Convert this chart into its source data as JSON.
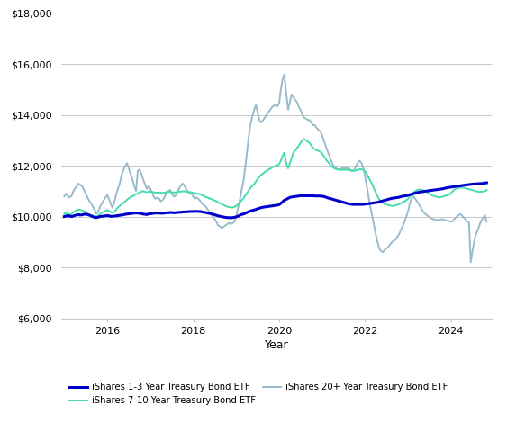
{
  "title": "",
  "xlabel": "Year",
  "ylabel": "",
  "background_color": "#ffffff",
  "grid_color": "#c8c8c8",
  "shy_color": "#0000cc",
  "ief_color": "#44ddaa",
  "tlt_color": "#99bbcc",
  "shy_label": "iShares 1-3 Year Treasury Bond ETF",
  "ief_label": "iShares 7-10 Year Treasury Bond ETF",
  "tlt_label": "iShares 20+ Year Treasury Bond ETF",
  "ylim": [
    6000,
    18000
  ],
  "yticks": [
    6000,
    8000,
    10000,
    12000,
    14000,
    16000,
    18000
  ],
  "xticks": [
    2016,
    2018,
    2020,
    2022,
    2024
  ],
  "xlim": [
    2014.92,
    2024.95
  ],
  "shy_lw": 2.2,
  "ief_lw": 1.4,
  "tlt_lw": 1.4,
  "dates": [
    2015.0,
    2015.04,
    2015.08,
    2015.12,
    2015.17,
    2015.21,
    2015.25,
    2015.29,
    2015.33,
    2015.37,
    2015.42,
    2015.46,
    2015.5,
    2015.54,
    2015.58,
    2015.63,
    2015.67,
    2015.71,
    2015.75,
    2015.79,
    2015.83,
    2015.87,
    2015.92,
    2015.96,
    2016.0,
    2016.04,
    2016.08,
    2016.12,
    2016.17,
    2016.21,
    2016.25,
    2016.29,
    2016.33,
    2016.37,
    2016.42,
    2016.46,
    2016.5,
    2016.54,
    2016.58,
    2016.63,
    2016.67,
    2016.71,
    2016.75,
    2016.79,
    2016.83,
    2016.87,
    2016.92,
    2016.96,
    2017.0,
    2017.04,
    2017.08,
    2017.12,
    2017.17,
    2017.21,
    2017.25,
    2017.29,
    2017.33,
    2017.37,
    2017.42,
    2017.46,
    2017.5,
    2017.54,
    2017.58,
    2017.63,
    2017.67,
    2017.71,
    2017.75,
    2017.79,
    2017.83,
    2017.87,
    2017.92,
    2017.96,
    2018.0,
    2018.04,
    2018.08,
    2018.12,
    2018.17,
    2018.21,
    2018.25,
    2018.29,
    2018.33,
    2018.37,
    2018.42,
    2018.46,
    2018.5,
    2018.54,
    2018.58,
    2018.63,
    2018.67,
    2018.71,
    2018.75,
    2018.79,
    2018.83,
    2018.87,
    2018.92,
    2018.96,
    2019.0,
    2019.04,
    2019.08,
    2019.12,
    2019.17,
    2019.21,
    2019.25,
    2019.29,
    2019.33,
    2019.37,
    2019.42,
    2019.46,
    2019.5,
    2019.54,
    2019.58,
    2019.63,
    2019.67,
    2019.71,
    2019.75,
    2019.79,
    2019.83,
    2019.87,
    2019.92,
    2019.96,
    2020.0,
    2020.04,
    2020.08,
    2020.12,
    2020.17,
    2020.21,
    2020.25,
    2020.29,
    2020.33,
    2020.37,
    2020.42,
    2020.46,
    2020.5,
    2020.54,
    2020.58,
    2020.63,
    2020.67,
    2020.71,
    2020.75,
    2020.79,
    2020.83,
    2020.87,
    2020.92,
    2020.96,
    2021.0,
    2021.04,
    2021.08,
    2021.12,
    2021.17,
    2021.21,
    2021.25,
    2021.29,
    2021.33,
    2021.37,
    2021.42,
    2021.46,
    2021.5,
    2021.54,
    2021.58,
    2021.63,
    2021.67,
    2021.71,
    2021.75,
    2021.79,
    2021.83,
    2021.87,
    2021.92,
    2021.96,
    2022.0,
    2022.04,
    2022.08,
    2022.12,
    2022.17,
    2022.21,
    2022.25,
    2022.29,
    2022.33,
    2022.37,
    2022.42,
    2022.46,
    2022.5,
    2022.54,
    2022.58,
    2022.63,
    2022.67,
    2022.71,
    2022.75,
    2022.79,
    2022.83,
    2022.87,
    2022.92,
    2022.96,
    2023.0,
    2023.04,
    2023.08,
    2023.12,
    2023.17,
    2023.21,
    2023.25,
    2023.29,
    2023.33,
    2023.37,
    2023.42,
    2023.46,
    2023.5,
    2023.54,
    2023.58,
    2023.63,
    2023.67,
    2023.71,
    2023.75,
    2023.79,
    2023.83,
    2023.87,
    2023.92,
    2023.96,
    2024.0,
    2024.04,
    2024.08,
    2024.12,
    2024.17,
    2024.21,
    2024.25,
    2024.29,
    2024.33,
    2024.37,
    2024.42,
    2024.46,
    2024.5,
    2024.54,
    2024.58,
    2024.63,
    2024.67,
    2024.71,
    2024.75,
    2024.79,
    2024.83
  ],
  "shy": [
    10000,
    10020,
    10040,
    10020,
    10000,
    10020,
    10050,
    10060,
    10080,
    10060,
    10070,
    10090,
    10100,
    10080,
    10060,
    10020,
    9990,
    9970,
    9960,
    9980,
    10000,
    10010,
    10020,
    10030,
    10040,
    10030,
    10010,
    10010,
    10020,
    10030,
    10040,
    10050,
    10060,
    10070,
    10090,
    10100,
    10110,
    10120,
    10130,
    10140,
    10140,
    10140,
    10130,
    10120,
    10100,
    10090,
    10080,
    10100,
    10110,
    10120,
    10130,
    10140,
    10140,
    10140,
    10130,
    10130,
    10140,
    10150,
    10150,
    10160,
    10160,
    10150,
    10150,
    10160,
    10170,
    10170,
    10180,
    10180,
    10190,
    10190,
    10200,
    10200,
    10200,
    10200,
    10210,
    10200,
    10200,
    10180,
    10170,
    10160,
    10140,
    10130,
    10110,
    10090,
    10070,
    10050,
    10030,
    10010,
    9990,
    9980,
    9970,
    9960,
    9960,
    9950,
    9960,
    9970,
    9990,
    10010,
    10050,
    10080,
    10100,
    10130,
    10160,
    10190,
    10220,
    10240,
    10260,
    10280,
    10310,
    10330,
    10350,
    10370,
    10380,
    10390,
    10400,
    10410,
    10420,
    10430,
    10440,
    10450,
    10470,
    10520,
    10580,
    10640,
    10680,
    10720,
    10750,
    10770,
    10780,
    10790,
    10800,
    10810,
    10820,
    10820,
    10820,
    10820,
    10820,
    10820,
    10820,
    10820,
    10810,
    10810,
    10810,
    10810,
    10800,
    10790,
    10770,
    10740,
    10720,
    10700,
    10680,
    10660,
    10640,
    10620,
    10600,
    10580,
    10560,
    10540,
    10520,
    10500,
    10490,
    10480,
    10480,
    10480,
    10480,
    10480,
    10480,
    10480,
    10490,
    10500,
    10510,
    10520,
    10530,
    10540,
    10550,
    10560,
    10580,
    10600,
    10620,
    10640,
    10660,
    10680,
    10700,
    10720,
    10730,
    10740,
    10750,
    10760,
    10780,
    10800,
    10810,
    10820,
    10840,
    10860,
    10880,
    10900,
    10920,
    10940,
    10960,
    10970,
    10980,
    10990,
    11000,
    11010,
    11020,
    11030,
    11040,
    11050,
    11060,
    11070,
    11080,
    11090,
    11100,
    11120,
    11140,
    11150,
    11160,
    11170,
    11180,
    11190,
    11200,
    11210,
    11220,
    11230,
    11240,
    11250,
    11260,
    11270,
    11280,
    11280,
    11290,
    11290,
    11300,
    11300,
    11310,
    11320,
    11330
  ],
  "ief": [
    10100,
    10150,
    10120,
    10080,
    10100,
    10180,
    10200,
    10250,
    10280,
    10260,
    10240,
    10200,
    10180,
    10120,
    10080,
    10060,
    10040,
    10020,
    10000,
    10030,
    10100,
    10150,
    10200,
    10220,
    10260,
    10220,
    10180,
    10150,
    10200,
    10280,
    10360,
    10420,
    10480,
    10540,
    10600,
    10660,
    10720,
    10760,
    10800,
    10840,
    10880,
    10900,
    10950,
    10980,
    11000,
    10980,
    10960,
    10980,
    10980,
    10970,
    10960,
    10940,
    10940,
    10950,
    10940,
    10930,
    10940,
    10960,
    10970,
    10970,
    10960,
    10950,
    10950,
    10970,
    10980,
    10980,
    10990,
    11000,
    10980,
    10970,
    10960,
    10960,
    10940,
    10920,
    10910,
    10900,
    10870,
    10840,
    10800,
    10780,
    10750,
    10720,
    10690,
    10660,
    10630,
    10600,
    10560,
    10520,
    10490,
    10460,
    10420,
    10390,
    10380,
    10360,
    10360,
    10380,
    10420,
    10480,
    10540,
    10620,
    10720,
    10820,
    10920,
    11020,
    11120,
    11200,
    11280,
    11380,
    11480,
    11560,
    11640,
    11700,
    11760,
    11800,
    11840,
    11880,
    11920,
    11960,
    12000,
    12020,
    12060,
    12200,
    12380,
    12520,
    12060,
    11900,
    12100,
    12300,
    12500,
    12600,
    12700,
    12800,
    12900,
    13000,
    13050,
    13000,
    12950,
    12900,
    12800,
    12700,
    12650,
    12620,
    12580,
    12550,
    12480,
    12380,
    12280,
    12180,
    12080,
    12000,
    11940,
    11900,
    11870,
    11850,
    11840,
    11840,
    11840,
    11840,
    11840,
    11840,
    11820,
    11800,
    11800,
    11820,
    11840,
    11860,
    11860,
    11840,
    11780,
    11680,
    11560,
    11420,
    11260,
    11100,
    10940,
    10800,
    10680,
    10600,
    10540,
    10500,
    10480,
    10460,
    10440,
    10420,
    10420,
    10440,
    10460,
    10480,
    10520,
    10560,
    10600,
    10640,
    10700,
    10780,
    10860,
    10940,
    11000,
    11040,
    11060,
    11060,
    11040,
    11020,
    10980,
    10940,
    10900,
    10860,
    10820,
    10800,
    10780,
    10760,
    10760,
    10780,
    10800,
    10820,
    10840,
    10860,
    10920,
    11000,
    11060,
    11100,
    11120,
    11140,
    11140,
    11140,
    11120,
    11100,
    11080,
    11060,
    11040,
    11020,
    11000,
    10980,
    10980,
    10980,
    10980,
    11000,
    11050
  ],
  "tlt": [
    10800,
    10900,
    10820,
    10750,
    10820,
    11000,
    11100,
    11200,
    11300,
    11250,
    11180,
    11050,
    10900,
    10750,
    10620,
    10500,
    10380,
    10250,
    10100,
    10200,
    10380,
    10500,
    10650,
    10750,
    10850,
    10700,
    10500,
    10350,
    10600,
    10900,
    11100,
    11300,
    11600,
    11800,
    12000,
    12100,
    11900,
    11700,
    11500,
    11200,
    11000,
    11800,
    11850,
    11700,
    11500,
    11300,
    11100,
    11200,
    11100,
    10950,
    10800,
    10700,
    10750,
    10700,
    10600,
    10650,
    10750,
    10900,
    11000,
    11050,
    10900,
    10800,
    10800,
    10950,
    11100,
    11200,
    11300,
    11250,
    11100,
    11000,
    10900,
    10900,
    10800,
    10700,
    10750,
    10700,
    10600,
    10500,
    10450,
    10400,
    10300,
    10200,
    10100,
    10000,
    9900,
    9800,
    9650,
    9600,
    9550,
    9600,
    9650,
    9700,
    9750,
    9700,
    9750,
    9800,
    10000,
    10300,
    10600,
    10980,
    11400,
    11900,
    12500,
    13100,
    13600,
    13900,
    14200,
    14400,
    14100,
    13800,
    13700,
    13800,
    13900,
    14000,
    14100,
    14200,
    14300,
    14350,
    14400,
    14350,
    14450,
    15000,
    15400,
    15600,
    14800,
    14200,
    14500,
    14800,
    14700,
    14600,
    14500,
    14300,
    14200,
    14000,
    13900,
    13850,
    13800,
    13800,
    13700,
    13600,
    13600,
    13500,
    13400,
    13350,
    13200,
    13000,
    12800,
    12600,
    12400,
    12200,
    12050,
    11950,
    11900,
    11850,
    11850,
    11900,
    11900,
    11900,
    11900,
    11900,
    11800,
    11800,
    11850,
    12000,
    12100,
    12200,
    12100,
    11900,
    11600,
    11200,
    10800,
    10400,
    10000,
    9650,
    9300,
    9000,
    8750,
    8650,
    8600,
    8700,
    8750,
    8800,
    8900,
    9000,
    9050,
    9100,
    9200,
    9300,
    9450,
    9600,
    9800,
    10000,
    10200,
    10500,
    10700,
    10800,
    10700,
    10600,
    10500,
    10380,
    10260,
    10150,
    10080,
    10020,
    9970,
    9930,
    9900,
    9880,
    9870,
    9870,
    9880,
    9900,
    9880,
    9860,
    9840,
    9820,
    9800,
    9820,
    9900,
    9980,
    10050,
    10100,
    10050,
    9980,
    9900,
    9820,
    9760,
    8200,
    8650,
    9000,
    9300,
    9500,
    9700,
    9850,
    9950,
    10050,
    9800
  ]
}
